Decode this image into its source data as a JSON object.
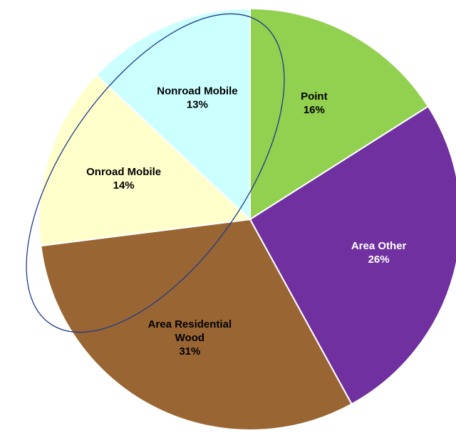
{
  "chart_data": {
    "type": "pie",
    "title": "",
    "slices": [
      {
        "label_lines": [
          "Point"
        ],
        "percent_label": "16%",
        "value": 16,
        "color": "#92d050",
        "text_color": "#000000"
      },
      {
        "label_lines": [
          "Area Other"
        ],
        "percent_label": "26%",
        "value": 26,
        "color": "#7030a0",
        "text_color": "#ffffff"
      },
      {
        "label_lines": [
          "Area Residential",
          "Wood"
        ],
        "percent_label": "31%",
        "value": 31,
        "color": "#996633",
        "text_color": "#000000"
      },
      {
        "label_lines": [
          "Onroad Mobile"
        ],
        "percent_label": "14%",
        "value": 14,
        "color": "#ffffcc",
        "text_color": "#000000"
      },
      {
        "label_lines": [
          "Nonroad Mobile"
        ],
        "percent_label": "13%",
        "value": 13,
        "color": "#ccffff",
        "text_color": "#000000"
      }
    ],
    "start_angle_deg": 0,
    "direction": "clockwise",
    "annotation": {
      "shape": "ellipse",
      "color": "#1f3a8a",
      "highlights": [
        "Nonroad Mobile",
        "Onroad Mobile",
        "Area Residential Wood"
      ]
    }
  }
}
